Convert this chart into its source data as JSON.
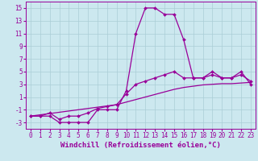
{
  "xlabel": "Windchill (Refroidissement éolien,°C)",
  "background_color": "#cce8ef",
  "line_color": "#990099",
  "grid_color": "#aacdd6",
  "xlim": [
    -0.5,
    23.5
  ],
  "ylim": [
    -4,
    16
  ],
  "xticks": [
    0,
    1,
    2,
    3,
    4,
    5,
    6,
    7,
    8,
    9,
    10,
    11,
    12,
    13,
    14,
    15,
    16,
    17,
    18,
    19,
    20,
    21,
    22,
    23
  ],
  "yticks": [
    -3,
    -1,
    1,
    3,
    5,
    7,
    9,
    11,
    13,
    15
  ],
  "hours": [
    0,
    1,
    2,
    3,
    4,
    5,
    6,
    7,
    8,
    9,
    10,
    11,
    12,
    13,
    14,
    15,
    16,
    17,
    18,
    19,
    20,
    21,
    22,
    23
  ],
  "line_peak": [
    -2,
    -2,
    -2,
    -3,
    -3,
    -3,
    -3,
    -1,
    -1,
    -1,
    2,
    11,
    15,
    15,
    14,
    14,
    10,
    4,
    4,
    5,
    4,
    4,
    5,
    3
  ],
  "line_mid": [
    -2,
    -2,
    -1.5,
    -2.5,
    -2,
    -2,
    -1.5,
    -0.8,
    -0.5,
    -0.2,
    1.5,
    3,
    3.5,
    4,
    4.5,
    5,
    4,
    4,
    4,
    4.5,
    4,
    4,
    4.5,
    3.5
  ],
  "line_low": [
    -2,
    -1.8,
    -1.6,
    -1.4,
    -1.2,
    -1.0,
    -0.8,
    -0.6,
    -0.4,
    -0.2,
    0.2,
    0.6,
    1.0,
    1.4,
    1.8,
    2.2,
    2.5,
    2.7,
    2.9,
    3.0,
    3.1,
    3.1,
    3.2,
    3.3
  ],
  "tick_fontsize": 5.5,
  "xlabel_fontsize": 6.5
}
